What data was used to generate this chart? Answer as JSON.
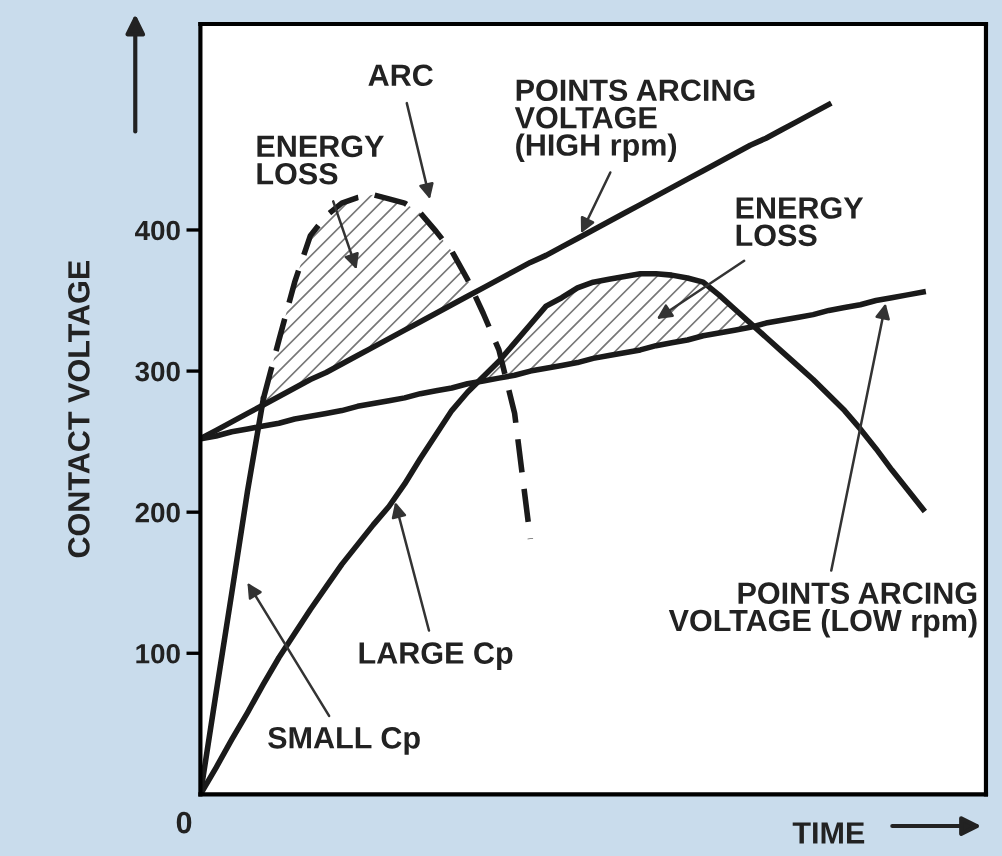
{
  "chart_data": {
    "type": "line",
    "xlabel": "TIME",
    "ylabel": "CONTACT VOLTAGE",
    "categories": [
      null,
      null,
      null,
      null,
      null,
      null,
      null,
      null,
      null,
      null,
      null,
      null,
      null,
      null,
      null,
      null,
      null,
      null,
      null,
      null,
      null,
      null,
      null,
      null,
      null,
      null,
      null,
      null,
      null,
      null,
      null,
      null,
      null,
      null,
      null,
      null,
      null,
      null,
      null,
      null,
      null,
      null,
      null,
      null,
      null,
      null,
      null,
      null,
      null,
      null,
      null
    ],
    "ylim": [
      0,
      546
    ],
    "yticks": [
      100,
      200,
      300,
      400
    ],
    "grid": false,
    "marker": "none",
    "series": [
      {
        "color": "#1a1a1a",
        "line_style": "solid",
        "values": [
          252,
          258,
          264,
          270,
          276,
          282,
          288,
          294,
          299,
          305,
          311,
          317,
          323,
          329,
          335,
          341,
          347,
          353,
          359,
          365,
          371,
          377,
          382,
          388,
          394,
          400,
          406,
          412,
          418,
          424,
          430,
          436,
          442,
          448,
          454,
          460,
          465,
          471,
          477,
          483,
          489,
          null,
          null,
          null,
          null,
          null,
          null,
          null,
          null,
          null,
          null
        ]
      },
      {
        "color": "#1a1a1a",
        "line_style": "solid",
        "values": [
          252,
          254,
          257,
          259,
          261,
          263,
          266,
          268,
          270,
          272,
          275,
          277,
          279,
          281,
          284,
          286,
          288,
          291,
          293,
          295,
          297,
          300,
          302,
          304,
          306,
          309,
          311,
          313,
          315,
          318,
          320,
          322,
          325,
          327,
          329,
          331,
          334,
          336,
          338,
          340,
          343,
          345,
          347,
          350,
          352,
          354,
          356,
          null,
          null,
          null,
          null
        ]
      },
      {
        "color": "#1a1a1a",
        "line_style": "solid",
        "values": [
          0,
          72,
          143,
          215,
          280,
          null,
          null,
          null,
          null,
          null,
          null,
          null,
          null,
          null,
          null,
          null,
          null,
          null,
          null,
          null,
          null,
          null,
          null,
          null,
          null,
          null,
          null,
          null,
          null,
          null,
          null,
          null,
          null,
          null,
          null,
          null,
          null,
          null,
          null,
          null,
          null,
          null,
          null,
          null,
          null,
          null,
          null,
          null,
          null,
          null,
          null
        ]
      },
      {
        "color": "#1a1a1a",
        "line_style": "dashed",
        "values": [
          null,
          null,
          null,
          null,
          280,
          322,
          363,
          396,
          410,
          419,
          423,
          425,
          422,
          419,
          412,
          399,
          385,
          365,
          341,
          315,
          270,
          181,
          null,
          null,
          null,
          null,
          null,
          null,
          null,
          null,
          null,
          null,
          null,
          null,
          null,
          null,
          null,
          null,
          null,
          null,
          null,
          null,
          null,
          null,
          null,
          null,
          null,
          null,
          null,
          null,
          null
        ]
      },
      {
        "color": "#1a1a1a",
        "line_style": "solid",
        "values": [
          0,
          19,
          39,
          58,
          78,
          97,
          114,
          131,
          147,
          163,
          177,
          191,
          204,
          220,
          238,
          255,
          272,
          285,
          296,
          307,
          320,
          333,
          346,
          352,
          359,
          363,
          365,
          367,
          369,
          369,
          368,
          366,
          363,
          354,
          344,
          334,
          324,
          314,
          304,
          294,
          283,
          272,
          259,
          245,
          230,
          216,
          202,
          null,
          null,
          null,
          null
        ]
      }
    ],
    "annotations": [
      "ENERGY\nLOSS",
      "ARC",
      "POINTS ARCING\nVOLTAGE\n(HIGH rpm)",
      "ENERGY\nLOSS",
      "POINTS ARCING\nVOLTAGE (LOW rpm)",
      "LARGE Cp",
      "SMALL Cp",
      "0"
    ]
  }
}
